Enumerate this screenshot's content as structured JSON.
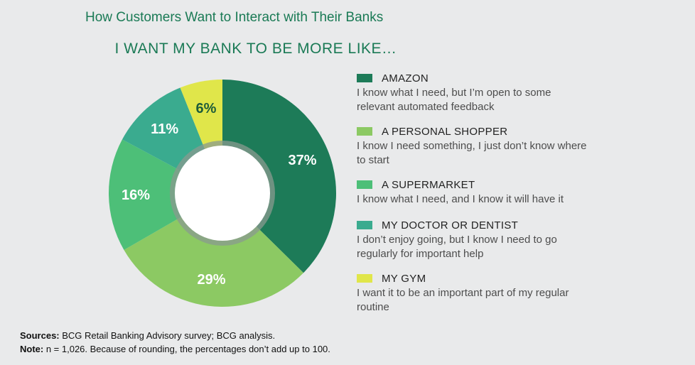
{
  "chart_data": {
    "type": "pie",
    "variant": "donut",
    "title": "How Customers Want to Interact with Their Banks",
    "subtitle": "I WANT MY BANK TO BE MORE LIKE…",
    "categories": [
      "AMAZON",
      "A PERSONAL SHOPPER",
      "A SUPERMARKET",
      "MY DOCTOR OR DENTIST",
      "MY GYM"
    ],
    "values": [
      37,
      29,
      16,
      11,
      6
    ],
    "value_labels": [
      "37%",
      "29%",
      "16%",
      "11%",
      "6%"
    ],
    "descriptions": [
      "I know what I need, but I’m open to some relevant automated feedback",
      "I know I need something, I just don’t know where to start",
      "I know what I need, and I know it will have it",
      "I don’t enjoy going, but I know I need to go regularly for important help",
      "I want it to be an important part of my regular routine"
    ],
    "colors": [
      "#1d7b58",
      "#8cc963",
      "#4dbf78",
      "#3aab8f",
      "#e0e64a"
    ],
    "label_colors": [
      "#ffffff",
      "#ffffff",
      "#ffffff",
      "#ffffff",
      "#1d5c3a"
    ],
    "legend_position": "right"
  },
  "notes": {
    "sources_label": "Sources:",
    "sources_text": " BCG Retail Banking Advisory survey; BCG analysis.",
    "note_label": "Note:",
    "note_text": " n = 1,026. Because of rounding, the percentages don’t add up to 100."
  }
}
